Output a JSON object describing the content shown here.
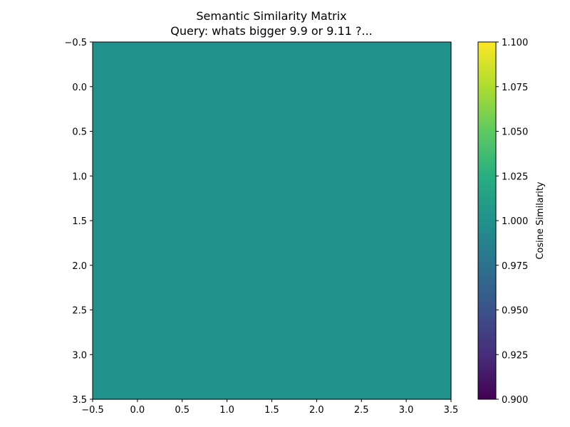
{
  "chart_data": {
    "type": "heatmap",
    "title_lines": [
      "Semantic Similarity Matrix",
      "Query: whats bigger 9.9 or 9.11 ?..."
    ],
    "matrix": [
      [
        1.0,
        1.0,
        1.0,
        1.0
      ],
      [
        1.0,
        1.0,
        1.0,
        1.0
      ],
      [
        1.0,
        1.0,
        1.0,
        1.0
      ],
      [
        1.0,
        1.0,
        1.0,
        1.0
      ]
    ],
    "xlim": [
      -0.5,
      3.5
    ],
    "ylim": [
      3.5,
      -0.5
    ],
    "x_ticks": [
      "-0.5",
      "0.0",
      "0.5",
      "1.0",
      "1.5",
      "2.0",
      "2.5",
      "3.0",
      "3.5"
    ],
    "y_ticks": [
      "-0.5",
      "0.0",
      "0.5",
      "1.0",
      "1.5",
      "2.0",
      "2.5",
      "3.0",
      "3.5"
    ],
    "colormap": "viridis",
    "cell_color": "#21918c",
    "colorbar": {
      "label": "Cosine Similarity",
      "range": [
        0.9,
        1.1
      ],
      "ticks": [
        "0.900",
        "0.925",
        "0.950",
        "0.975",
        "1.000",
        "1.025",
        "1.050",
        "1.075",
        "1.100"
      ]
    },
    "grid": false
  }
}
